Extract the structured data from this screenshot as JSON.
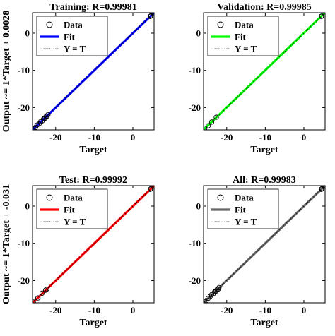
{
  "chart_data": [
    {
      "type": "scatter",
      "title": "Training: R=0.99981",
      "xlabel": "Target",
      "ylabel": "Output ~= 1*Target + 0.0028",
      "xlim": [
        -26,
        5.5
      ],
      "ylim": [
        -26,
        5.5
      ],
      "xticks": [
        -20,
        -10,
        0
      ],
      "yticks": [
        -20,
        -10,
        0
      ],
      "fit_color": "#0000ff",
      "fit": {
        "slope": 1,
        "intercept": 0.0028
      },
      "legend": [
        "Data",
        "Fit",
        "Y = T"
      ],
      "legend_position": "top-left",
      "points": [
        [
          -25.8,
          -25.7
        ],
        [
          -25.2,
          -25.3
        ],
        [
          -24.8,
          -24.7
        ],
        [
          -24.3,
          -24.4
        ],
        [
          -23.9,
          -23.8
        ],
        [
          -23.5,
          -23.6
        ],
        [
          -23.1,
          -23.0
        ],
        [
          -22.8,
          -22.9
        ],
        [
          -22.5,
          -22.4
        ],
        [
          -22.2,
          -22.3
        ],
        [
          -22.0,
          -21.9
        ],
        [
          4.5,
          4.5
        ],
        [
          4.6,
          4.6
        ],
        [
          4.7,
          4.7
        ]
      ]
    },
    {
      "type": "scatter",
      "title": "Validation: R=0.99985",
      "xlabel": "Target",
      "ylabel": "",
      "xlim": [
        -26,
        5.5
      ],
      "ylim": [
        -26,
        5.5
      ],
      "xticks": [
        -20,
        -10,
        0
      ],
      "yticks": [
        -20,
        -10,
        0
      ],
      "fit_color": "#00ff00",
      "fit": {
        "slope": 1,
        "intercept": 0.049
      },
      "legend": [
        "Data",
        "Fit",
        "Y = T"
      ],
      "legend_position": "top-left",
      "points": [
        [
          -25.7,
          -25.6
        ],
        [
          -24.8,
          -24.9
        ],
        [
          -23.9,
          -23.9
        ],
        [
          -22.7,
          -22.6
        ],
        [
          4.5,
          4.5
        ],
        [
          4.65,
          4.6
        ]
      ]
    },
    {
      "type": "scatter",
      "title": "Test: R=0.99992",
      "xlabel": "Target",
      "ylabel": "Output ~= 1*Target + -0.031",
      "xlim": [
        -26,
        5.5
      ],
      "ylim": [
        -26,
        5.5
      ],
      "xticks": [
        -20,
        -10,
        0
      ],
      "yticks": [
        -20,
        -10,
        0
      ],
      "fit_color": "#ff0000",
      "fit": {
        "slope": 1,
        "intercept": -0.031
      },
      "legend": [
        "Data",
        "Fit",
        "Y = T"
      ],
      "legend_position": "top-left",
      "points": [
        [
          -25.8,
          -25.8
        ],
        [
          -24.6,
          -24.7
        ],
        [
          -23.5,
          -23.4
        ],
        [
          -22.6,
          -22.6
        ],
        [
          -22.3,
          -22.3
        ],
        [
          4.5,
          4.5
        ],
        [
          4.7,
          4.7
        ]
      ]
    },
    {
      "type": "scatter",
      "title": "All: R=0.99983",
      "xlabel": "Target",
      "ylabel": "",
      "xlim": [
        -26,
        5.5
      ],
      "ylim": [
        -26,
        5.5
      ],
      "xticks": [
        -20,
        -10,
        0
      ],
      "yticks": [
        -20,
        -10,
        0
      ],
      "fit_color": "#666666",
      "fit": {
        "slope": 1,
        "intercept": 0.0048
      },
      "legend": [
        "Data",
        "Fit",
        "Y = T"
      ],
      "legend_position": "top-left",
      "points": [
        [
          -25.8,
          -25.7
        ],
        [
          -25.3,
          -25.4
        ],
        [
          -24.8,
          -24.8
        ],
        [
          -24.3,
          -24.3
        ],
        [
          -23.9,
          -23.8
        ],
        [
          -23.5,
          -23.6
        ],
        [
          -23.1,
          -23.0
        ],
        [
          -22.8,
          -22.9
        ],
        [
          -22.5,
          -22.4
        ],
        [
          -22.2,
          -22.3
        ],
        [
          -22.0,
          -21.9
        ],
        [
          4.5,
          4.5
        ],
        [
          4.6,
          4.6
        ],
        [
          4.7,
          4.7
        ]
      ]
    }
  ]
}
